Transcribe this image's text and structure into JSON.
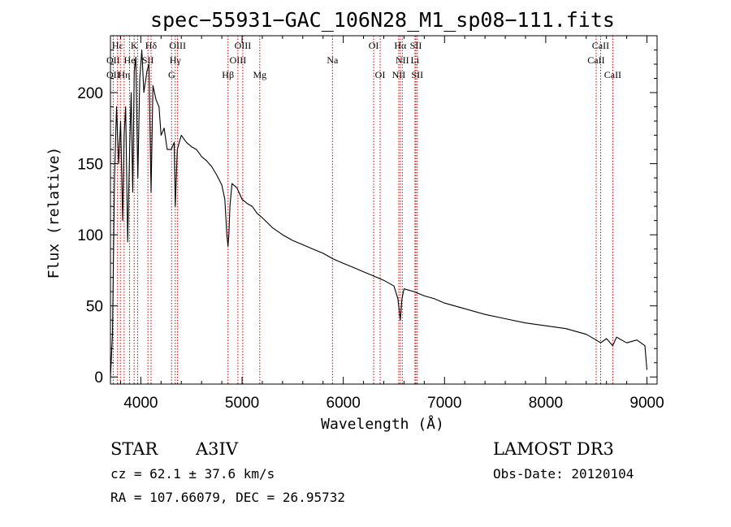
{
  "chart_data": {
    "type": "line",
    "title": "spec−55931−GAC_106N28_M1_sp08−111.fits",
    "xlabel": "Wavelength (Å)",
    "ylabel": "Flux (relative)",
    "xlim": [
      3700,
      9100
    ],
    "ylim": [
      -5,
      240
    ],
    "xticks": [
      4000,
      5000,
      6000,
      7000,
      8000,
      9000
    ],
    "yticks": [
      0,
      50,
      100,
      150,
      200
    ],
    "series": [
      {
        "name": "spectrum",
        "x": [
          3700,
          3720,
          3740,
          3760,
          3780,
          3800,
          3820,
          3835,
          3850,
          3870,
          3889,
          3905,
          3920,
          3935,
          3950,
          3970,
          3990,
          4010,
          4030,
          4060,
          4080,
          4101,
          4120,
          4150,
          4180,
          4200,
          4230,
          4260,
          4300,
          4330,
          4340,
          4360,
          4400,
          4450,
          4500,
          4550,
          4600,
          4650,
          4700,
          4750,
          4800,
          4830,
          4850,
          4861,
          4870,
          4880,
          4900,
          4950,
          5000,
          5050,
          5100,
          5150,
          5200,
          5300,
          5400,
          5500,
          5600,
          5700,
          5800,
          5900,
          6000,
          6100,
          6200,
          6300,
          6400,
          6500,
          6540,
          6563,
          6580,
          6600,
          6700,
          6800,
          6900,
          7000,
          7200,
          7400,
          7600,
          7800,
          8000,
          8200,
          8400,
          8498,
          8542,
          8600,
          8662,
          8700,
          8800,
          8900,
          8980,
          9000
        ],
        "values": [
          0,
          30,
          140,
          190,
          150,
          180,
          110,
          170,
          190,
          95,
          160,
          200,
          130,
          215,
          225,
          140,
          210,
          230,
          200,
          215,
          220,
          130,
          205,
          195,
          190,
          170,
          175,
          160,
          160,
          165,
          120,
          160,
          170,
          165,
          162,
          160,
          155,
          152,
          148,
          142,
          135,
          125,
          100,
          92,
          100,
          120,
          136,
          133,
          125,
          122,
          120,
          115,
          112,
          105,
          100,
          96,
          93,
          90,
          87,
          83,
          80,
          77,
          74,
          71,
          68,
          64,
          55,
          40,
          55,
          62,
          60,
          57,
          55,
          52,
          48,
          44,
          41,
          38,
          36,
          34,
          30,
          26,
          24,
          27,
          22,
          28,
          24,
          26,
          22,
          5
        ]
      }
    ],
    "lines": [
      {
        "label": "Hε",
        "wavelength": 3770,
        "row": 1
      },
      {
        "label": "K",
        "wavelength": 3934,
        "row": 1
      },
      {
        "label": "Hδ",
        "wavelength": 4101,
        "row": 1
      },
      {
        "label": "OIII",
        "wavelength": 4363,
        "row": 1
      },
      {
        "label": "OIII",
        "wavelength": 5007,
        "row": 1
      },
      {
        "label": "OI",
        "wavelength": 6300,
        "row": 1
      },
      {
        "label": "Hα",
        "wavelength": 6563,
        "row": 1
      },
      {
        "label": "SII",
        "wavelength": 6717,
        "row": 1
      },
      {
        "label": "CaII",
        "wavelength": 8542,
        "row": 1
      },
      {
        "label": "OII",
        "wavelength": 3727,
        "row": 2
      },
      {
        "label": "He",
        "wavelength": 3889,
        "row": 2
      },
      {
        "label": "SII",
        "wavelength": 4070,
        "row": 2
      },
      {
        "label": "Hγ",
        "wavelength": 4340,
        "row": 2
      },
      {
        "label": "OIII",
        "wavelength": 4959,
        "row": 2
      },
      {
        "label": "Na",
        "wavelength": 5893,
        "row": 2
      },
      {
        "label": "NII",
        "wavelength": 6583,
        "row": 2
      },
      {
        "label": "Li",
        "wavelength": 6708,
        "row": 2
      },
      {
        "label": "CaII",
        "wavelength": 8498,
        "row": 2
      },
      {
        "label": "OII",
        "wavelength": 3727,
        "row": 3
      },
      {
        "label": "Hη",
        "wavelength": 3835,
        "row": 3
      },
      {
        "label": "G",
        "wavelength": 4304,
        "row": 3
      },
      {
        "label": "Hβ",
        "wavelength": 4861,
        "row": 3
      },
      {
        "label": "Mg",
        "wavelength": 5175,
        "row": 3
      },
      {
        "label": "OI",
        "wavelength": 6364,
        "row": 3
      },
      {
        "label": "NII",
        "wavelength": 6548,
        "row": 3
      },
      {
        "label": "SII",
        "wavelength": 6731,
        "row": 3
      },
      {
        "label": "CaII",
        "wavelength": 8662,
        "row": 3
      }
    ],
    "marker_wavelengths": [
      3727,
      3770,
      3798,
      3835,
      3889,
      3934,
      3968,
      4070,
      4101,
      4304,
      4340,
      4363,
      4861,
      4959,
      5007,
      5175,
      5893,
      6300,
      6364,
      6548,
      6563,
      6583,
      6708,
      6717,
      6731,
      8498,
      8542,
      8662
    ]
  },
  "info": {
    "object_class": "STAR",
    "subclass": "A3IV",
    "survey": "LAMOST DR3",
    "cz": "cz = 62.1 ± 37.6 km/s",
    "obs_date": "Obs-Date: 20120104",
    "coords": "RA = 107.66079, DEC =  26.95732"
  },
  "colors": {
    "spectrum": "#000000",
    "marker_line": "#cc0000"
  }
}
